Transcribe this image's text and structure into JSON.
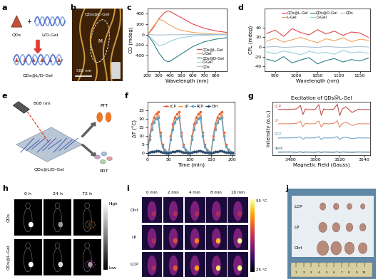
{
  "panel_labels": [
    "a",
    "b",
    "c",
    "d",
    "e",
    "f",
    "g",
    "h",
    "i",
    "j"
  ],
  "a": {
    "items": [
      "QDs",
      "L/D-Gel"
    ],
    "operator": "+",
    "product": "QDs@L/D-Gel"
  },
  "b": {
    "title": "QDs@L-Gel",
    "marker_text": "M",
    "scale_bar": "500 nm"
  },
  "chart_data": [
    {
      "type": "line",
      "xlabel": "Wavelength (nm)",
      "ylabel": "CD (mdeg)",
      "x": [
        200,
        250,
        300,
        350,
        380,
        400,
        450,
        500,
        600,
        700,
        800,
        900
      ],
      "series": [
        {
          "name": "QDs@L-Gel",
          "color": "#e0474c",
          "values": [
            0,
            120,
            300,
            420,
            450,
            440,
            380,
            320,
            200,
            120,
            70,
            40
          ]
        },
        {
          "name": "L-Gel",
          "color": "#f0a35e",
          "values": [
            0,
            150,
            290,
            260,
            200,
            180,
            120,
            80,
            40,
            20,
            10,
            5
          ]
        },
        {
          "name": "QDs@D-Gel",
          "color": "#2e7d8c",
          "values": [
            0,
            -150,
            -350,
            -490,
            -520,
            -510,
            -440,
            -370,
            -230,
            -140,
            -90,
            -60
          ]
        },
        {
          "name": "D-Gel",
          "color": "#9ccfd6",
          "values": [
            0,
            -100,
            -210,
            -190,
            -150,
            -130,
            -90,
            -60,
            -30,
            -15,
            -8,
            -4
          ]
        },
        {
          "name": "QDs",
          "color": "#a9c1d4",
          "values": [
            0,
            -5,
            -10,
            -8,
            -6,
            -5,
            -4,
            -3,
            -2,
            -1,
            0,
            0
          ]
        }
      ],
      "xlim": [
        200,
        900
      ],
      "ylim": [
        -700,
        500
      ],
      "xticks": [
        200,
        300,
        400,
        500,
        600,
        700,
        800
      ],
      "yticks": [
        -400,
        -200,
        0,
        200,
        400
      ],
      "legend": "lower right"
    },
    {
      "type": "line",
      "xlabel": "Wavelength (nm)",
      "ylabel": "CPL (mdeg)",
      "x": [
        930,
        950,
        970,
        990,
        1010,
        1030,
        1050,
        1070,
        1090,
        1110,
        1130,
        1150,
        1170
      ],
      "series": [
        {
          "name": "QDs@L-Gel",
          "color": "#e0474c",
          "values": [
            28,
            35,
            22,
            38,
            30,
            25,
            36,
            27,
            33,
            24,
            31,
            29,
            20
          ]
        },
        {
          "name": "L-Gel",
          "color": "#f0a35e",
          "values": [
            12,
            18,
            10,
            15,
            20,
            14,
            9,
            17,
            13,
            19,
            11,
            16,
            14
          ]
        },
        {
          "name": "QDs@D-Gel",
          "color": "#2e7d8c",
          "values": [
            -25,
            -30,
            -20,
            -33,
            -27,
            -22,
            -35,
            -28,
            -24,
            -31,
            -26,
            -29,
            -23
          ]
        },
        {
          "name": "D-Gel",
          "color": "#9ccfd6",
          "values": [
            -10,
            -14,
            -8,
            -12,
            -16,
            -9,
            -13,
            -11,
            -15,
            -7,
            -12,
            -10,
            -13
          ]
        },
        {
          "name": "QDs",
          "color": "#a9c1d4",
          "values": [
            0,
            1,
            -1,
            0,
            1,
            0,
            -1,
            1,
            0,
            -1,
            0,
            1,
            0
          ]
        }
      ],
      "xlim": [
        925,
        1175
      ],
      "ylim": [
        -50,
        80
      ],
      "xticks": [
        950,
        1000,
        1050,
        1100,
        1150
      ],
      "yticks": [
        -40,
        -20,
        0,
        20,
        40
      ],
      "legend": "upper center"
    },
    {
      "type": "line",
      "xlabel": "Time (min)",
      "ylabel": "ΔT (°C)",
      "x": [
        0,
        5,
        10,
        15,
        20,
        25,
        30,
        35,
        40,
        45,
        50,
        55,
        60,
        65,
        70,
        75,
        80,
        85,
        90,
        95,
        100,
        105,
        110,
        115,
        120,
        125,
        130,
        135,
        140,
        145,
        150,
        155,
        160,
        165,
        170,
        175,
        180,
        185,
        190,
        195,
        200
      ],
      "series": [
        {
          "name": "LCP",
          "color": "#e8623a",
          "marker": "circle",
          "line_style": "solid",
          "values": [
            0,
            10,
            17,
            21,
            23,
            24,
            12,
            5,
            2,
            1,
            0,
            10,
            17,
            21,
            23,
            24,
            12,
            5,
            2,
            1,
            0,
            10,
            17,
            21,
            23,
            24,
            12,
            5,
            2,
            1,
            0,
            10,
            17,
            21,
            23,
            24,
            12,
            5,
            2,
            1,
            0.5
          ]
        },
        {
          "name": "LP",
          "color": "#f2a65a",
          "marker": "triangle",
          "line_style": "solid",
          "values": [
            0,
            9,
            15,
            19,
            21,
            22,
            11,
            4,
            2,
            1,
            0,
            9,
            15,
            19,
            21,
            22,
            11,
            4,
            2,
            1,
            0,
            9,
            15,
            19,
            21,
            22,
            11,
            4,
            2,
            1,
            0,
            9,
            15,
            19,
            21,
            22,
            11,
            4,
            2,
            1,
            0.5
          ]
        },
        {
          "name": "RCP",
          "color": "#5aa0c8",
          "marker": "square",
          "line_style": "solid",
          "values": [
            0,
            8,
            14,
            18,
            20,
            21,
            10,
            4,
            2,
            1,
            0,
            8,
            14,
            18,
            20,
            21,
            10,
            4,
            2,
            1,
            0,
            8,
            14,
            18,
            20,
            21,
            10,
            4,
            2,
            1,
            0,
            8,
            14,
            18,
            20,
            21,
            10,
            4,
            2,
            1,
            0.5
          ]
        },
        {
          "name": "Ctrl",
          "color": "#2f4f6f",
          "marker": "diamond",
          "line_style": "solid",
          "values": [
            0,
            0.5,
            1,
            1,
            1.2,
            1.3,
            0.8,
            0.5,
            0.3,
            0.2,
            0,
            0.5,
            1,
            1,
            1.2,
            1.3,
            0.8,
            0.5,
            0.3,
            0.2,
            0,
            0.5,
            1,
            1,
            1.2,
            1.3,
            0.8,
            0.5,
            0.3,
            0.2,
            0,
            0.5,
            1,
            1,
            1.2,
            1.3,
            0.8,
            0.5,
            0.3,
            0.2,
            0.2
          ]
        }
      ],
      "xlim": [
        0,
        205
      ],
      "ylim": [
        -1,
        30
      ],
      "xticks": [
        0,
        50,
        100,
        150,
        200
      ],
      "yticks": [
        0,
        5,
        10,
        15,
        20,
        25
      ],
      "legend": "upper center"
    },
    {
      "type": "spectra",
      "title": "Excitation of QDs@L-Gel",
      "xlabel": "Magnetic Field (Gauss)",
      "ylabel": "Intensity (a.u.)",
      "x": [
        3470,
        3480,
        3485,
        3488,
        3490,
        3492,
        3495,
        3500,
        3503,
        3505,
        3507,
        3510,
        3515,
        3518,
        3520,
        3522,
        3525,
        3530,
        3535,
        3540,
        3545
      ],
      "series": [
        {
          "name": "LCP",
          "color": "#c0504d",
          "values": [
            0,
            0.02,
            0.05,
            0.3,
            -0.35,
            0.05,
            0,
            0.02,
            0.35,
            -0.4,
            0.05,
            0,
            0.03,
            0.38,
            -0.42,
            0.04,
            0.2,
            -0.2,
            0.02,
            0,
            0
          ]
        },
        {
          "name": "LP",
          "color": "#e58a6a",
          "values": [
            0,
            0.01,
            0.03,
            0.18,
            -0.2,
            0.03,
            0,
            0.01,
            0.2,
            -0.24,
            0.03,
            0,
            0.02,
            0.22,
            -0.25,
            0.02,
            0.12,
            -0.12,
            0.01,
            0,
            0
          ]
        },
        {
          "name": "RCP",
          "color": "#6fa8c8",
          "values": [
            0,
            0.01,
            0.02,
            0.08,
            -0.09,
            0.01,
            0,
            0.01,
            0.1,
            -0.11,
            0.01,
            0,
            0.01,
            0.1,
            -0.12,
            0.01,
            0.05,
            -0.05,
            0.01,
            0,
            0
          ]
        },
        {
          "name": "dark",
          "color": "#3b6b8a",
          "values": [
            0,
            0.01,
            -0.01,
            0.02,
            -0.02,
            0.01,
            0,
            -0.01,
            0.02,
            -0.02,
            0.01,
            0,
            -0.01,
            0.02,
            -0.02,
            0.01,
            0,
            -0.01,
            0.01,
            0,
            0
          ]
        }
      ],
      "xlim": [
        3465,
        3545
      ],
      "xticks": [
        3480,
        3500,
        3520,
        3540
      ],
      "tick_labels": "x"
    }
  ],
  "e": {
    "laser": "808 nm",
    "material": "QDs@L/D-Gel",
    "outputs": [
      "PTT",
      "PDT"
    ]
  },
  "h": {
    "columns": [
      "0 h",
      "24 h",
      "72 h"
    ],
    "rows": [
      "QDs",
      "QDs@L-Gel"
    ],
    "colorbar": {
      "top": "High",
      "bottom": "Low"
    }
  },
  "i": {
    "columns": [
      "0 min",
      "2 min",
      "4 min",
      "8 min",
      "10 min"
    ],
    "rows": [
      "Ctrl",
      "LP",
      "LCP"
    ],
    "colorbar": {
      "top": "55 °C",
      "bottom": "25 °C"
    }
  },
  "j": {
    "rows": [
      "LCP",
      "LP",
      "Ctrl"
    ],
    "ruler": [
      1,
      2,
      3,
      4,
      5,
      6,
      7,
      8,
      9,
      10
    ]
  }
}
